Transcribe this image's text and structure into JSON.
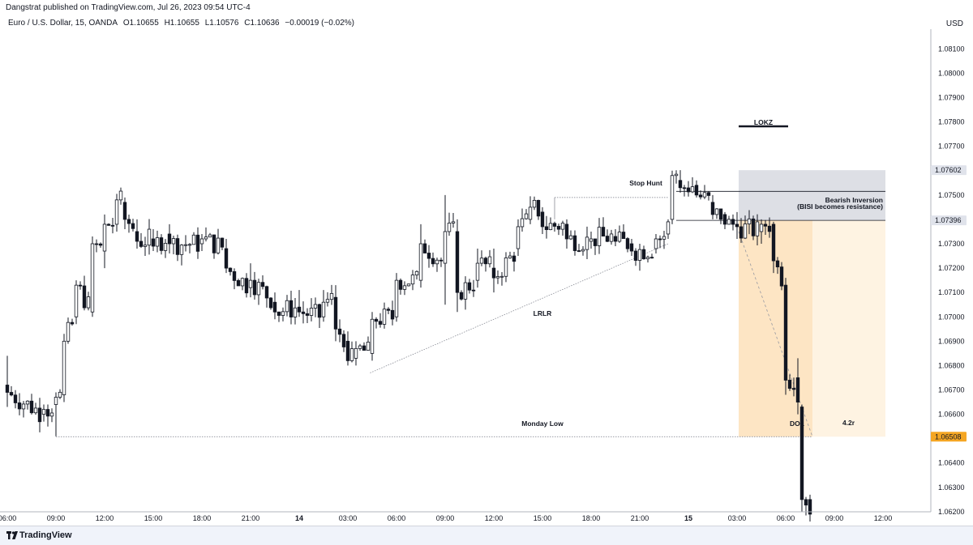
{
  "header": {
    "published": "Dangstrat published on TradingView.com, Jul 26, 2023 09:54 UTC-4",
    "symbol": "Euro / U.S. Dollar, 15, OANDA",
    "open": "O1.10655",
    "high": "H1.10655",
    "low": "L1.10576",
    "close": "C1.10636",
    "change": "−0.00019 (−0.02%)",
    "currency": "USD"
  },
  "footer": {
    "brand": "TradingView"
  },
  "colors": {
    "candle": "#131722",
    "zone_gray": "#d1d4dc",
    "zone_orange": "#fde5c4",
    "zone_light": "#fef3e2",
    "price_tag_orange": "#f5a623",
    "price_tag_gray": "#787b86"
  },
  "chart_data": {
    "type": "candlestick",
    "ylim": [
      1.0615,
      1.0815
    ],
    "y_ticks": [
      "1.08100",
      "1.08000",
      "1.07900",
      "1.07800",
      "1.07700",
      "1.07500",
      "1.07300",
      "1.07200",
      "1.07100",
      "1.07000",
      "1.06900",
      "1.06800",
      "1.06700",
      "1.06600",
      "1.06400",
      "1.06300",
      "1.06200"
    ],
    "x_ticks": [
      {
        "label": "06:00",
        "i": -12,
        "bold": false
      },
      {
        "label": "09:00",
        "i": 0,
        "bold": false
      },
      {
        "label": "12:00",
        "i": 12,
        "bold": false
      },
      {
        "label": "15:00",
        "i": 24,
        "bold": false
      },
      {
        "label": "18:00",
        "i": 36,
        "bold": false
      },
      {
        "label": "21:00",
        "i": 48,
        "bold": false
      },
      {
        "label": "14",
        "i": 60,
        "bold": true
      },
      {
        "label": "03:00",
        "i": 72,
        "bold": false
      },
      {
        "label": "06:00",
        "i": 84,
        "bold": false
      },
      {
        "label": "09:00",
        "i": 96,
        "bold": false
      },
      {
        "label": "12:00",
        "i": 108,
        "bold": false
      },
      {
        "label": "15:00",
        "i": 120,
        "bold": false
      },
      {
        "label": "18:00",
        "i": 132,
        "bold": false
      },
      {
        "label": "21:00",
        "i": 144,
        "bold": false
      },
      {
        "label": "15",
        "i": 156,
        "bold": true
      },
      {
        "label": "03:00",
        "i": 168,
        "bold": false
      },
      {
        "label": "06:00",
        "i": 180,
        "bold": false
      },
      {
        "label": "09:00",
        "i": 192,
        "bold": false
      },
      {
        "label": "12:00",
        "i": 204,
        "bold": false
      }
    ],
    "price_tags": [
      {
        "value": 1.07602,
        "label": "1.07602",
        "style": "gray"
      },
      {
        "value": 1.07396,
        "label": "1.07396",
        "style": "gray"
      },
      {
        "value": 1.06508,
        "label": "1.06508",
        "style": "orange"
      }
    ],
    "key_candles": [
      {
        "i": -12,
        "o": 1.0672,
        "h": 1.0684,
        "l": 1.0663,
        "c": 1.0669
      },
      {
        "i": -3,
        "o": 1.066,
        "h": 1.0664,
        "l": 1.0657,
        "c": 1.0662
      },
      {
        "i": 0,
        "o": 1.0664,
        "h": 1.0669,
        "l": 1.0651,
        "c": 1.0667
      },
      {
        "i": 2,
        "o": 1.0668,
        "h": 1.0693,
        "l": 1.0665,
        "c": 1.069
      },
      {
        "i": 5,
        "o": 1.07,
        "h": 1.0715,
        "l": 1.0697,
        "c": 1.0713
      },
      {
        "i": 9,
        "o": 1.0702,
        "h": 1.0733,
        "l": 1.07,
        "c": 1.073
      },
      {
        "i": 12,
        "o": 1.0727,
        "h": 1.0742,
        "l": 1.072,
        "c": 1.0738
      },
      {
        "i": 15,
        "o": 1.0738,
        "h": 1.07505,
        "l": 1.0735,
        "c": 1.0748
      },
      {
        "i": 17,
        "o": 1.0747,
        "h": 1.0749,
        "l": 1.0736,
        "c": 1.074
      },
      {
        "i": 20,
        "o": 1.0735,
        "h": 1.074,
        "l": 1.0728,
        "c": 1.0731
      },
      {
        "i": 24,
        "o": 1.0732,
        "h": 1.0736,
        "l": 1.0727,
        "c": 1.0729
      },
      {
        "i": 28,
        "o": 1.0734,
        "h": 1.0738,
        "l": 1.0726,
        "c": 1.073
      },
      {
        "i": 36,
        "o": 1.073,
        "h": 1.0734,
        "l": 1.0727,
        "c": 1.0732
      },
      {
        "i": 42,
        "o": 1.0728,
        "h": 1.0732,
        "l": 1.0718,
        "c": 1.072
      },
      {
        "i": 48,
        "o": 1.0712,
        "h": 1.0722,
        "l": 1.0708,
        "c": 1.0715
      },
      {
        "i": 54,
        "o": 1.0706,
        "h": 1.071,
        "l": 1.0699,
        "c": 1.0702
      },
      {
        "i": 60,
        "o": 1.0704,
        "h": 1.0711,
        "l": 1.07,
        "c": 1.0702
      },
      {
        "i": 66,
        "o": 1.07,
        "h": 1.0711,
        "l": 1.0698,
        "c": 1.0706
      },
      {
        "i": 69,
        "o": 1.0708,
        "h": 1.0713,
        "l": 1.069,
        "c": 1.0695
      },
      {
        "i": 72,
        "o": 1.069,
        "h": 1.0694,
        "l": 1.068,
        "c": 1.0682
      },
      {
        "i": 74,
        "o": 1.0683,
        "h": 1.069,
        "l": 1.068,
        "c": 1.0687
      },
      {
        "i": 78,
        "o": 1.0685,
        "h": 1.0702,
        "l": 1.0682,
        "c": 1.0699
      },
      {
        "i": 84,
        "o": 1.07,
        "h": 1.0718,
        "l": 1.0698,
        "c": 1.0715
      },
      {
        "i": 90,
        "o": 1.0715,
        "h": 1.0738,
        "l": 1.0712,
        "c": 1.073
      },
      {
        "i": 96,
        "o": 1.0722,
        "h": 1.075,
        "l": 1.0705,
        "c": 1.0735
      },
      {
        "i": 99,
        "o": 1.0735,
        "h": 1.074,
        "l": 1.0702,
        "c": 1.071
      },
      {
        "i": 104,
        "o": 1.0715,
        "h": 1.0728,
        "l": 1.0712,
        "c": 1.0722
      },
      {
        "i": 108,
        "o": 1.072,
        "h": 1.0728,
        "l": 1.071,
        "c": 1.0716
      },
      {
        "i": 114,
        "o": 1.0728,
        "h": 1.074,
        "l": 1.0725,
        "c": 1.0737
      },
      {
        "i": 117,
        "o": 1.074,
        "h": 1.07495,
        "l": 1.0738,
        "c": 1.0745
      },
      {
        "i": 120,
        "o": 1.0743,
        "h": 1.0745,
        "l": 1.0734,
        "c": 1.0737
      },
      {
        "i": 126,
        "o": 1.0738,
        "h": 1.074,
        "l": 1.0728,
        "c": 1.0732
      },
      {
        "i": 132,
        "o": 1.0731,
        "h": 1.0735,
        "l": 1.0728,
        "c": 1.0732
      },
      {
        "i": 138,
        "o": 1.0733,
        "h": 1.0736,
        "l": 1.0729,
        "c": 1.0731
      },
      {
        "i": 142,
        "o": 1.073,
        "h": 1.0732,
        "l": 1.0725,
        "c": 1.0727
      },
      {
        "i": 148,
        "o": 1.0728,
        "h": 1.0734,
        "l": 1.0726,
        "c": 1.0732
      },
      {
        "i": 151,
        "o": 1.0734,
        "h": 1.074,
        "l": 1.0732,
        "c": 1.0739
      },
      {
        "i": 152,
        "o": 1.074,
        "h": 1.076,
        "l": 1.0738,
        "c": 1.0758
      },
      {
        "i": 154,
        "o": 1.0756,
        "h": 1.07602,
        "l": 1.0751,
        "c": 1.0753
      },
      {
        "i": 158,
        "o": 1.0754,
        "h": 1.0756,
        "l": 1.0749,
        "c": 1.075
      },
      {
        "i": 162,
        "o": 1.0747,
        "h": 1.075,
        "l": 1.074,
        "c": 1.0742
      },
      {
        "i": 165,
        "o": 1.0742,
        "h": 1.0743,
        "l": 1.0736,
        "c": 1.0738
      },
      {
        "i": 168,
        "o": 1.0738,
        "h": 1.0743,
        "l": 1.0732,
        "c": 1.0737
      },
      {
        "i": 174,
        "o": 1.0735,
        "h": 1.074,
        "l": 1.073,
        "c": 1.0738
      },
      {
        "i": 177,
        "o": 1.0738,
        "h": 1.0739,
        "l": 1.0718,
        "c": 1.0723
      },
      {
        "i": 180,
        "o": 1.0713,
        "h": 1.0716,
        "l": 1.0668,
        "c": 1.0674
      },
      {
        "i": 183,
        "o": 1.0675,
        "h": 1.0683,
        "l": 1.066,
        "c": 1.0665
      },
      {
        "i": 184,
        "o": 1.0663,
        "h": 1.0664,
        "l": 1.062,
        "c": 1.0625
      },
      {
        "i": 186,
        "o": 1.0625,
        "h": 1.0627,
        "l": 1.0616,
        "c": 1.0619
      }
    ],
    "annotations": [
      {
        "text": "LOKZ"
      },
      {
        "text": "Stop Hunt"
      },
      {
        "text": "Bearish Inversion"
      },
      {
        "text": "(BISI becomes resistance)"
      },
      {
        "text": "LRLR"
      },
      {
        "text": "Monday Low"
      },
      {
        "text": "DOL"
      },
      {
        "text": "4.2r"
      }
    ],
    "levels": {
      "monday_low": 1.06508,
      "stop_hunt": 1.0749,
      "inversion_top": 1.07602,
      "inversion_bottom": 1.07396,
      "inversion_mid": 1.07515
    }
  }
}
